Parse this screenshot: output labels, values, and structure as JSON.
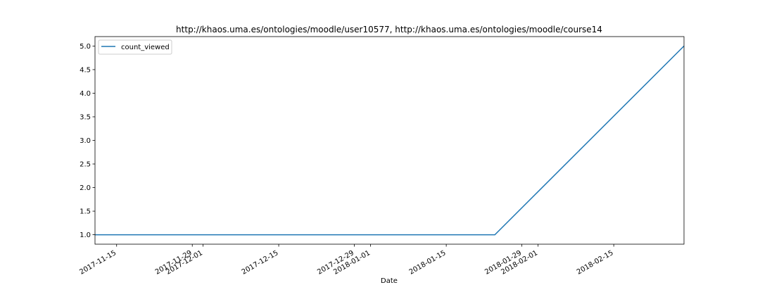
{
  "chart_data": {
    "type": "line",
    "title": "http://khaos.uma.es/ontologies/moodle/user10577, http://khaos.uma.es/ontologies/moodle/course14",
    "xlabel": "Date",
    "ylabel": "",
    "xlim": [
      "2017-11-11",
      "2018-02-28"
    ],
    "ylim": [
      0.8,
      5.2
    ],
    "series": [
      {
        "name": "count_viewed",
        "color": "#1f77b4",
        "x": [
          "2017-11-11",
          "2018-01-24",
          "2018-02-28"
        ],
        "y": [
          1.0,
          1.0,
          5.0
        ]
      }
    ],
    "x_ticks": [
      {
        "date": "2017-11-15",
        "label": "2017-11-15"
      },
      {
        "date": "2017-11-29",
        "label": "2017-11-29"
      },
      {
        "date": "2017-12-01",
        "label": "2017-12-01"
      },
      {
        "date": "2017-12-15",
        "label": "2017-12-15"
      },
      {
        "date": "2017-12-29",
        "label": "2017-12-29"
      },
      {
        "date": "2018-01-01",
        "label": "2018-01-01"
      },
      {
        "date": "2018-01-15",
        "label": "2018-01-15"
      },
      {
        "date": "2018-01-29",
        "label": "2018-01-29"
      },
      {
        "date": "2018-02-01",
        "label": "2018-02-01"
      },
      {
        "date": "2018-02-15",
        "label": "2018-02-15"
      }
    ],
    "y_ticks": [
      1.0,
      1.5,
      2.0,
      2.5,
      3.0,
      3.5,
      4.0,
      4.5,
      5.0
    ],
    "y_tick_labels": [
      "1.0",
      "1.5",
      "2.0",
      "2.5",
      "3.0",
      "3.5",
      "4.0",
      "4.5",
      "5.0"
    ],
    "legend": {
      "position": "top-left",
      "entries": [
        "count_viewed"
      ]
    },
    "grid": false
  }
}
